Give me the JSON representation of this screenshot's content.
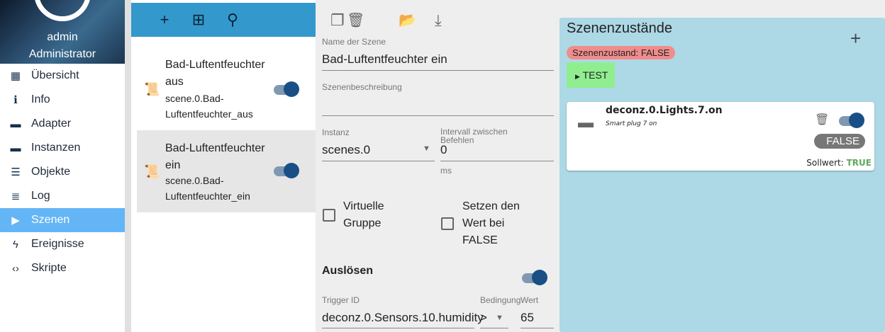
{
  "user": {
    "name": "admin",
    "role": "Administrator"
  },
  "nav": [
    {
      "label": "Übersicht",
      "icon": "grid-icon"
    },
    {
      "label": "Info",
      "icon": "info-icon"
    },
    {
      "label": "Adapter",
      "icon": "store-icon"
    },
    {
      "label": "Instanzen",
      "icon": "subtitles-icon"
    },
    {
      "label": "Objekte",
      "icon": "list-icon"
    },
    {
      "label": "Log",
      "icon": "lines-icon"
    },
    {
      "label": "Szenen",
      "icon": "scenes-icon",
      "active": true
    },
    {
      "label": "Ereignisse",
      "icon": "flash-icon"
    },
    {
      "label": "Skripte",
      "icon": "code-icon"
    }
  ],
  "scenes": [
    {
      "title": "Bad-Luftentfeuchter aus",
      "id": "scene.0.Bad-Luftentfeuchter_aus",
      "enabled": true
    },
    {
      "title": "Bad-Luftentfeuchter ein",
      "id": "scene.0.Bad-Luftentfeuchter_ein",
      "enabled": true,
      "selected": true
    }
  ],
  "editor": {
    "name_label": "Name der Szene",
    "name_value": "Bad-Luftentfeuchter ein",
    "desc_label": "Szenenbeschreibung",
    "desc_value": "",
    "instance_label": "Instanz",
    "instance_value": "scenes.0",
    "interval_label": "Intervall zwischen Befehlen",
    "interval_value": "0",
    "interval_unit": "ms",
    "virtual_group": "Virtuelle Gruppe",
    "set_on_false": "Setzen den Wert bei FALSE",
    "trigger_title": "Auslösen",
    "trigger_enabled": true,
    "trigger_id_label": "Trigger ID",
    "trigger_id_value": "deconz.0.Sensors.10.humidity",
    "condition_label": "Bedingung",
    "condition_value": ">",
    "value_label": "Wert",
    "value_value": "65"
  },
  "states": {
    "title": "Szenenzustände",
    "state_badge": "Szenenzustand: FALSE",
    "test_label": "TEST",
    "colors": {
      "badge": "#f08c8c",
      "test": "#90ee90",
      "panel": "#add8e6",
      "true": "#5cab5c"
    },
    "items": [
      {
        "id": "deconz.0.Lights.7.on",
        "desc": "Smart plug 7 on",
        "enabled": true,
        "actual": "FALSE",
        "setpoint_label": "Sollwert:",
        "setpoint": "TRUE"
      }
    ]
  }
}
